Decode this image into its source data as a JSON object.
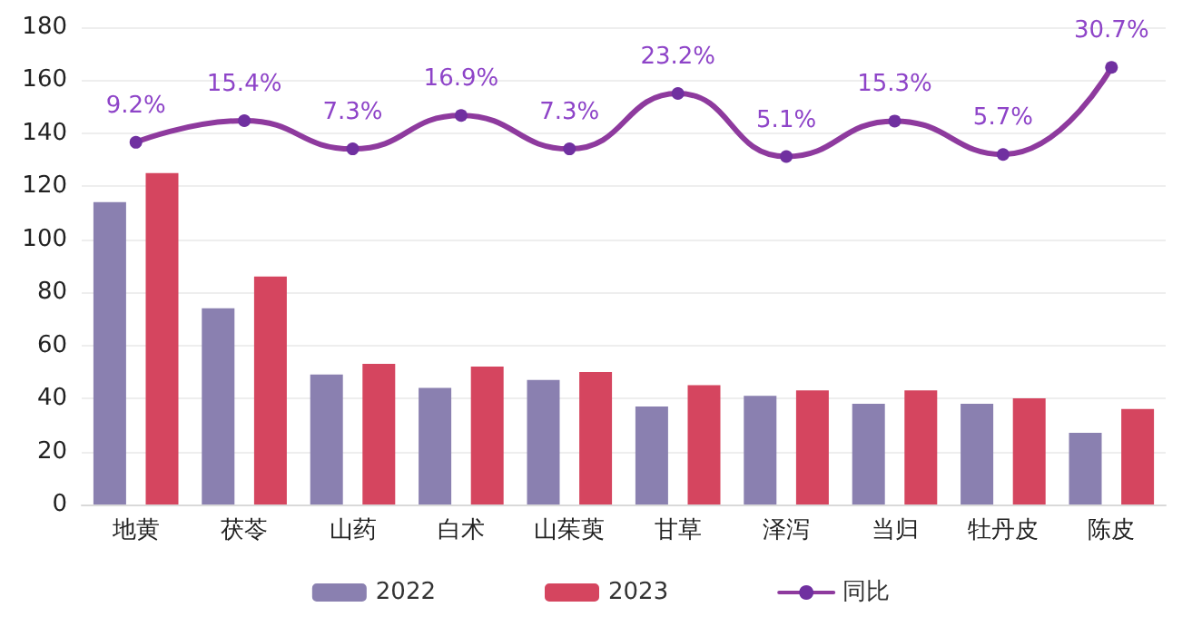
{
  "chart_data": {
    "type": "bar",
    "categories": [
      "地黄",
      "茯苓",
      "山药",
      "白术",
      "山茱萸",
      "甘草",
      "泽泻",
      "当归",
      "牡丹皮",
      "陈皮"
    ],
    "series": [
      {
        "name": "2022",
        "color": "#8a80b0",
        "values": [
          114,
          74,
          49,
          44,
          47,
          37,
          41,
          38,
          38,
          27
        ]
      },
      {
        "name": "2023",
        "color": "#d5455f",
        "values": [
          125,
          86,
          53,
          52,
          50,
          45,
          43,
          43,
          40,
          36
        ]
      },
      {
        "name": "同比",
        "type": "line",
        "axis": "y2",
        "color": "#8e3a9e",
        "values": [
          9.2,
          15.4,
          7.3,
          16.9,
          7.3,
          23.2,
          5.1,
          15.3,
          5.7,
          30.7
        ],
        "value_labels": [
          "9.2%",
          "15.4%",
          "7.3%",
          "16.9%",
          "7.3%",
          "23.2%",
          "5.1%",
          "15.3%",
          "5.7%",
          "30.7%"
        ]
      }
    ],
    "ylim": [
      0,
      180
    ],
    "yticks": [
      0,
      20,
      40,
      60,
      80,
      100,
      120,
      140,
      160,
      180
    ],
    "grid": "y",
    "legend": "bottom",
    "marker": "circle",
    "tick_labels": "xy"
  }
}
